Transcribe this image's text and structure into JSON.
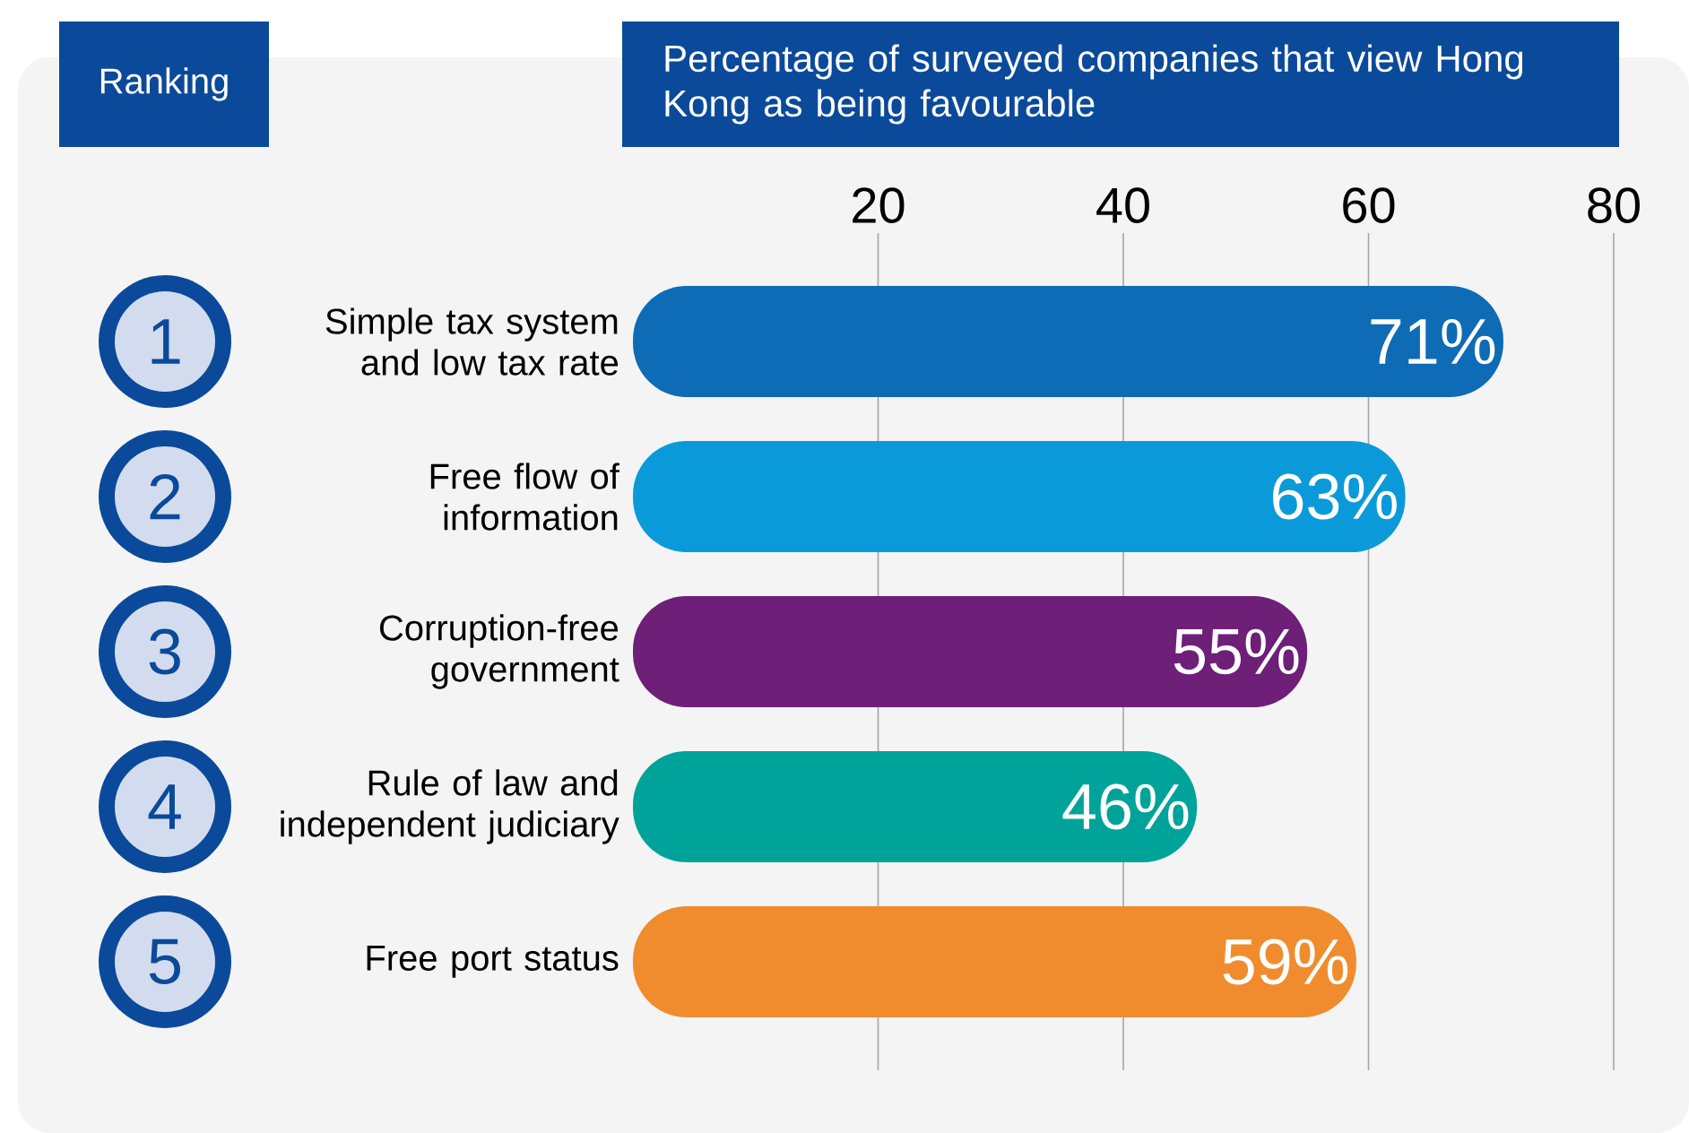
{
  "chart_data": {
    "type": "bar",
    "orientation": "horizontal",
    "title": "Percentage of surveyed companies that view Hong Kong as being favourable",
    "categories": [
      "Simple tax system and low tax rate",
      "Free flow of information",
      "Corruption-free government",
      "Rule of law and independent judiciary",
      "Free port status"
    ],
    "values": [
      71,
      63,
      55,
      46,
      59
    ],
    "value_labels": [
      "71%",
      "63%",
      "55%",
      "46%",
      "59%"
    ],
    "colors": [
      "#0e6bb5",
      "#0b9ad9",
      "#6e1f78",
      "#00a39a",
      "#f08c2e"
    ],
    "xlim": [
      0,
      80
    ],
    "xticks": [
      20,
      40,
      60,
      80
    ],
    "grid": "x",
    "annotations": [
      "Ranking",
      "1",
      "2",
      "3",
      "4",
      "5"
    ]
  }
}
